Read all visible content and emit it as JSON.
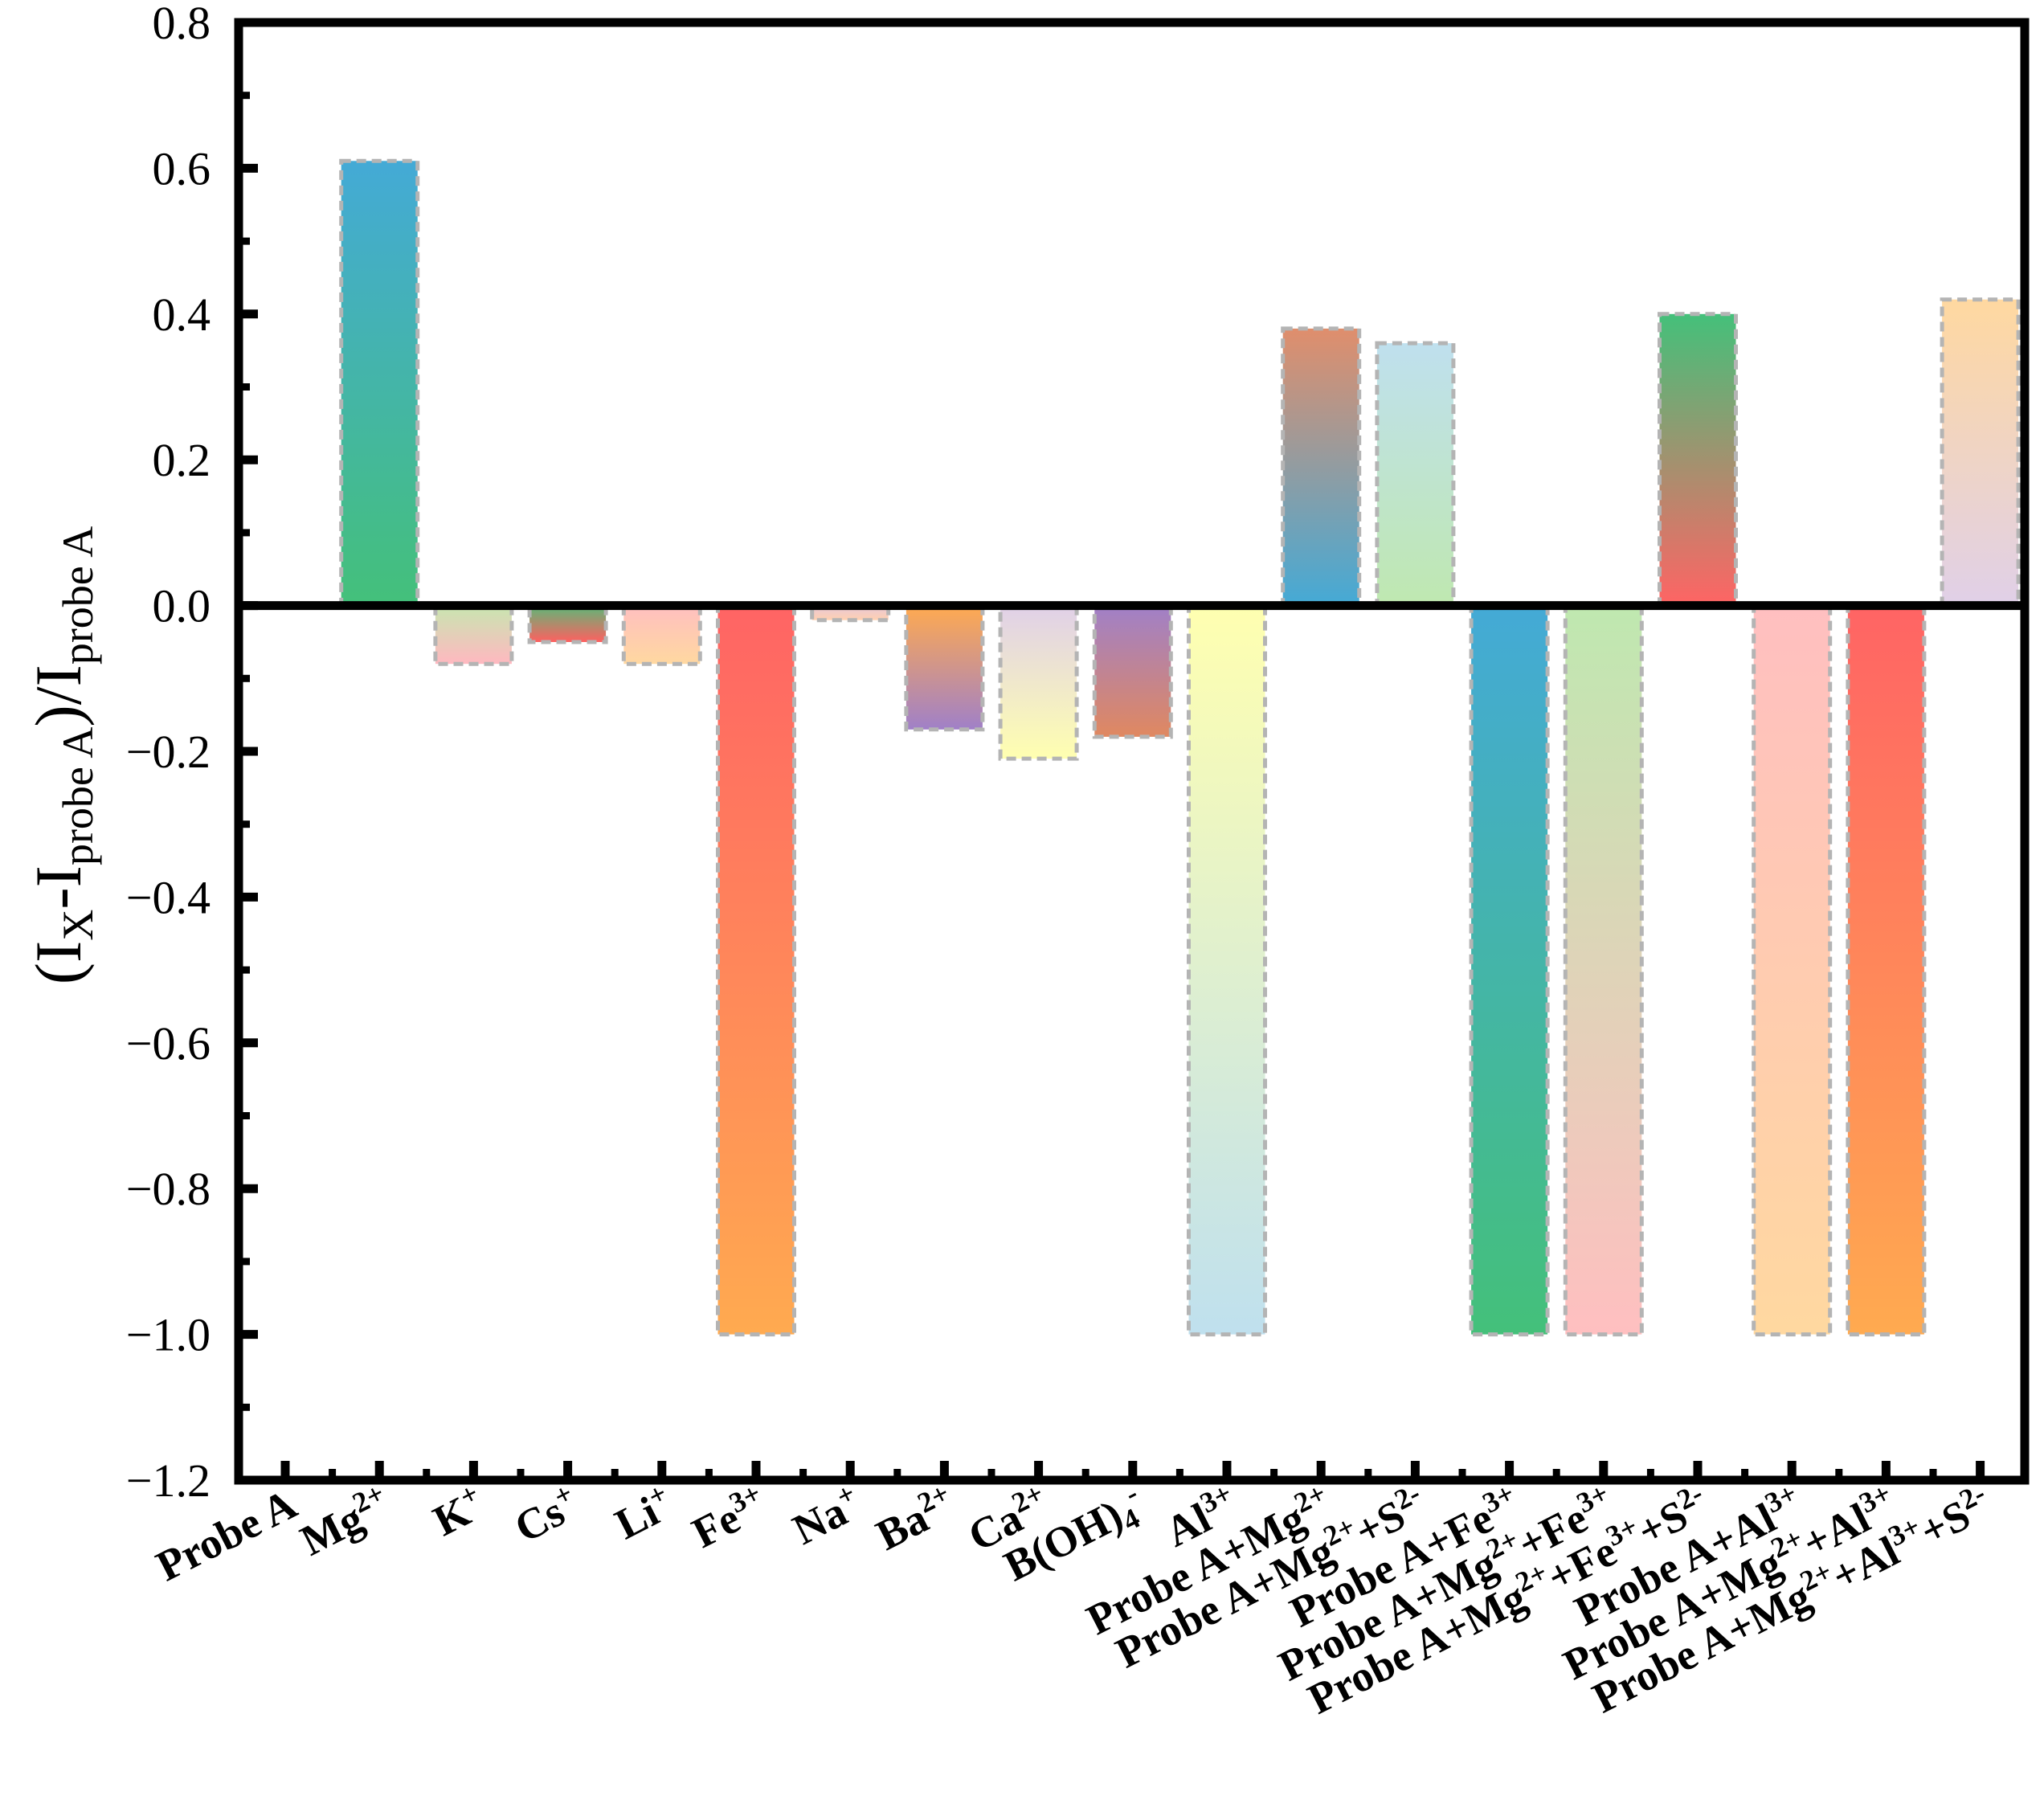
{
  "chart_data": {
    "type": "bar",
    "title": "",
    "xlabel": "",
    "ylabel": {
      "parts": [
        {
          "text": "(I",
          "style": "normal"
        },
        {
          "text": "X",
          "style": "sub"
        },
        {
          "text": "-I",
          "style": "normal"
        },
        {
          "text": "probe A",
          "style": "sub"
        },
        {
          "text": ")/I",
          "style": "normal"
        },
        {
          "text": "probe A",
          "style": "sub"
        }
      ]
    },
    "ylim": [
      -1.2,
      0.8
    ],
    "yticks": [
      "0.8",
      "0.6",
      "0.4",
      "0.2",
      "0.0",
      "-0.2",
      "-0.4",
      "-0.6",
      "-0.8",
      "-1.0",
      "-1.2"
    ],
    "ytick_values": [
      0.8,
      0.6,
      0.4,
      0.2,
      0.0,
      -0.2,
      -0.4,
      -0.6,
      -0.8,
      -1.0,
      -1.2
    ],
    "grid": false,
    "categories": [
      {
        "label": [
          {
            "t": "Probe A"
          }
        ],
        "value": 0.0,
        "colors": [
          "#5cb85c",
          "#5cb85c"
        ]
      },
      {
        "label": [
          {
            "t": "Mg"
          },
          {
            "t": "2+",
            "s": "sup"
          }
        ],
        "value": 0.61,
        "colors": [
          "#44aad6",
          "#44c07a"
        ]
      },
      {
        "label": [
          {
            "t": "K"
          },
          {
            "t": "+",
            "s": "sup"
          }
        ],
        "value": -0.08,
        "colors": [
          "#c8e6b0",
          "#ffb8c0"
        ]
      },
      {
        "label": [
          {
            "t": "Cs"
          },
          {
            "t": "+",
            "s": "sup"
          }
        ],
        "value": -0.05,
        "colors": [
          "#5cb878",
          "#ff6060"
        ]
      },
      {
        "label": [
          {
            "t": "Li"
          },
          {
            "t": "+",
            "s": "sup"
          }
        ],
        "value": -0.08,
        "colors": [
          "#ffbfc0",
          "#ffd8a0"
        ]
      },
      {
        "label": [
          {
            "t": "Fe"
          },
          {
            "t": "3+",
            "s": "sup"
          }
        ],
        "value": -1.0,
        "colors": [
          "#ff6464",
          "#ffaa50"
        ]
      },
      {
        "label": [
          {
            "t": "Na"
          },
          {
            "t": "+",
            "s": "sup"
          }
        ],
        "value": -0.02,
        "colors": [
          "#e8c8d8",
          "#ffd0b0"
        ]
      },
      {
        "label": [
          {
            "t": "Ba"
          },
          {
            "t": "2+",
            "s": "sup"
          }
        ],
        "value": -0.17,
        "colors": [
          "#ffaa50",
          "#a080c8"
        ]
      },
      {
        "label": [
          {
            "t": "Ca"
          },
          {
            "t": "2+",
            "s": "sup"
          }
        ],
        "value": -0.21,
        "colors": [
          "#e0d0e8",
          "#ffffb0"
        ]
      },
      {
        "label": [
          {
            "t": "B(OH)"
          },
          {
            "t": "4",
            "s": "sub"
          },
          {
            "t": "-",
            "s": "sup"
          }
        ],
        "value": -0.18,
        "colors": [
          "#a080c8",
          "#e08860"
        ]
      },
      {
        "label": [
          {
            "t": "Al"
          },
          {
            "t": "3+",
            "s": "sup"
          }
        ],
        "value": -1.0,
        "colors": [
          "#ffffb0",
          "#bfe0ee"
        ]
      },
      {
        "label": [
          {
            "t": "Probe A+Mg"
          },
          {
            "t": "2+",
            "s": "sup"
          }
        ],
        "value": 0.38,
        "colors": [
          "#e08e6c",
          "#44aad6"
        ]
      },
      {
        "label": [
          {
            "t": "Probe A+Mg"
          },
          {
            "t": "2+",
            "s": "sup"
          },
          {
            "t": "+S"
          },
          {
            "t": "2-",
            "s": "sup"
          }
        ],
        "value": 0.36,
        "colors": [
          "#bfe0ee",
          "#bfe8b0"
        ]
      },
      {
        "label": [
          {
            "t": "Probe A+Fe"
          },
          {
            "t": "3+",
            "s": "sup"
          }
        ],
        "value": -1.0,
        "colors": [
          "#44aad6",
          "#44c07a"
        ]
      },
      {
        "label": [
          {
            "t": "Probe A+Mg"
          },
          {
            "t": "2+",
            "s": "sup"
          },
          {
            "t": "+Fe"
          },
          {
            "t": "3+",
            "s": "sup"
          }
        ],
        "value": -1.0,
        "colors": [
          "#bfe8b0",
          "#ffbfc0"
        ]
      },
      {
        "label": [
          {
            "t": "Probe A+Mg"
          },
          {
            "t": "2+",
            "s": "sup"
          },
          {
            "t": "+Fe"
          },
          {
            "t": "3+",
            "s": "sup"
          },
          {
            "t": "+S"
          },
          {
            "t": "2-",
            "s": "sup"
          }
        ],
        "value": 0.4,
        "colors": [
          "#44c07a",
          "#ff6464"
        ]
      },
      {
        "label": [
          {
            "t": "Probe A+Al"
          },
          {
            "t": "3+",
            "s": "sup"
          }
        ],
        "value": -1.0,
        "colors": [
          "#ffbfc0",
          "#ffd8a0"
        ]
      },
      {
        "label": [
          {
            "t": "Probe A+Mg"
          },
          {
            "t": "2+",
            "s": "sup"
          },
          {
            "t": "+Al"
          },
          {
            "t": "3+",
            "s": "sup"
          }
        ],
        "value": -1.0,
        "colors": [
          "#ff6464",
          "#ffaa50"
        ]
      },
      {
        "label": [
          {
            "t": "Probe A+Mg"
          },
          {
            "t": "2+",
            "s": "sup"
          },
          {
            "t": "+Al"
          },
          {
            "t": "3+",
            "s": "sup"
          },
          {
            "t": "+S"
          },
          {
            "t": "2-",
            "s": "sup"
          }
        ],
        "value": 0.42,
        "colors": [
          "#ffd8a0",
          "#e0d0e8"
        ]
      }
    ]
  }
}
